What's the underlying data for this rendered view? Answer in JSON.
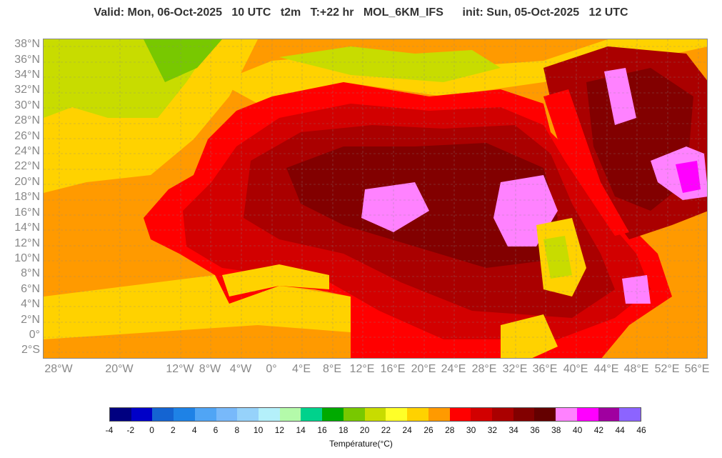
{
  "header": {
    "title": "Valid: Mon, 06-Oct-2025   10 UTC   t2m   T:+22 hr   MOL_6KM_IFS      init: Sun, 05-Oct-2025   12 UTC"
  },
  "map": {
    "lat_labels": [
      "38°N",
      "36°N",
      "34°N",
      "32°N",
      "30°N",
      "28°N",
      "26°N",
      "24°N",
      "22°N",
      "20°N",
      "18°N",
      "16°N",
      "14°N",
      "12°N",
      "10°N",
      "8°N",
      "6°N",
      "4°N",
      "2°N",
      "0°",
      "2°S"
    ],
    "lon_labels": [
      "28°W",
      "20°W",
      "12°W",
      "8°W",
      "4°W",
      "0°",
      "4°E",
      "8°E",
      "12°E",
      "16°E",
      "20°E",
      "24°E",
      "28°E",
      "32°E",
      "36°E",
      "40°E",
      "44°E",
      "48°E",
      "52°E",
      "56°E"
    ],
    "lon_values": [
      -28,
      -20,
      -12,
      -8,
      -4,
      0,
      4,
      8,
      12,
      16,
      20,
      24,
      28,
      32,
      36,
      40,
      44,
      48,
      52,
      56
    ]
  },
  "colorbar": {
    "label": "Température(°C)",
    "ticks": [
      "-4",
      "-2",
      "0",
      "2",
      "4",
      "6",
      "8",
      "10",
      "12",
      "14",
      "16",
      "18",
      "20",
      "22",
      "24",
      "26",
      "28",
      "30",
      "32",
      "34",
      "36",
      "38",
      "40",
      "42",
      "44",
      "46"
    ],
    "colors": [
      "#000080",
      "#0000c8",
      "#1464d2",
      "#1e82e6",
      "#50a5f5",
      "#78b9fa",
      "#96d2fa",
      "#b4f0fa",
      "#b4faaa",
      "#00d28c",
      "#00aa00",
      "#78c800",
      "#c8dc00",
      "#ffff28",
      "#ffd200",
      "#ff9a00",
      "#ff0000",
      "#d20000",
      "#aa0000",
      "#820000",
      "#640000",
      "#ff82ff",
      "#ff00ff",
      "#a000a0",
      "#8c64ff"
    ]
  }
}
